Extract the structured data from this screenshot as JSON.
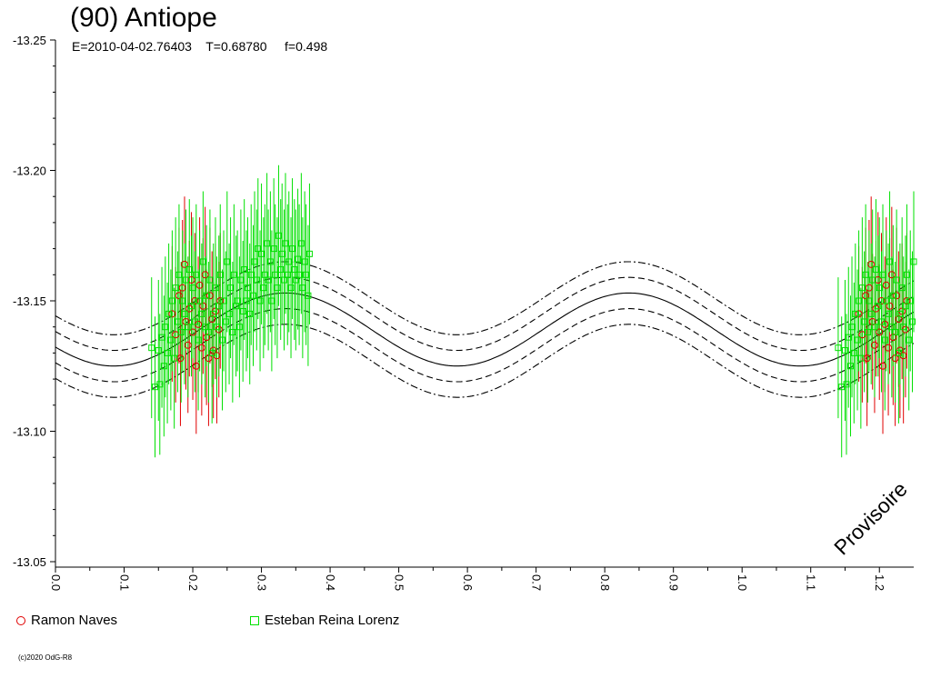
{
  "header": {
    "title": "(90) Antiope",
    "subtitle": "E=2010-04-02.76403    T=0.68780     f=0.498"
  },
  "watermark": "Provisoire",
  "copyright": "(c)2020 OdG-R8",
  "legend": [
    {
      "name": "Ramon Naves",
      "symbol": "circle",
      "color": "#e00000"
    },
    {
      "name": "Esteban Reina Lorenz",
      "symbol": "square",
      "color": "#00e000"
    }
  ],
  "chart_data": {
    "type": "scatter",
    "title": "(90) Antiope",
    "xlabel": "",
    "ylabel": "",
    "xlim": [
      0.0,
      1.25
    ],
    "ylim": [
      -13.25,
      -13.05
    ],
    "y_inverted": true,
    "x_ticks": [
      "0.0",
      "0.1",
      "0.2",
      "0.3",
      "0.4",
      "0.5",
      "0.6",
      "0.7",
      "0.8",
      "0.9",
      "1.0",
      "1.1",
      "1.2"
    ],
    "y_ticks": [
      "-13.25",
      "-13.20",
      "-13.15",
      "-13.10",
      "-13.05"
    ],
    "grid": false,
    "model_curves": [
      {
        "style": "solid",
        "offset": 0.0
      },
      {
        "style": "dashed",
        "offset": 0.006
      },
      {
        "style": "dashed",
        "offset": -0.006
      },
      {
        "style": "dashdot",
        "offset": 0.012
      },
      {
        "style": "dashdot",
        "offset": -0.012
      }
    ],
    "model": {
      "mean": -13.139,
      "amplitude": 0.014,
      "peak_phase": 0.335
    },
    "series": [
      {
        "name": "Ramon Naves",
        "color": "#e00000",
        "marker": "circle",
        "error": 0.026,
        "points": [
          [
            0.17,
            -13.145
          ],
          [
            0.175,
            -13.137
          ],
          [
            0.18,
            -13.152
          ],
          [
            0.182,
            -13.128
          ],
          [
            0.185,
            -13.155
          ],
          [
            0.188,
            -13.164
          ],
          [
            0.19,
            -13.142
          ],
          [
            0.193,
            -13.133
          ],
          [
            0.195,
            -13.147
          ],
          [
            0.198,
            -13.158
          ],
          [
            0.2,
            -13.138
          ],
          [
            0.203,
            -13.15
          ],
          [
            0.205,
            -13.125
          ],
          [
            0.208,
            -13.141
          ],
          [
            0.21,
            -13.156
          ],
          [
            0.213,
            -13.132
          ],
          [
            0.215,
            -13.148
          ],
          [
            0.218,
            -13.16
          ],
          [
            0.22,
            -13.136
          ],
          [
            0.223,
            -13.128
          ],
          [
            0.225,
            -13.152
          ],
          [
            0.228,
            -13.143
          ],
          [
            0.23,
            -13.131
          ],
          [
            0.233,
            -13.146
          ],
          [
            0.235,
            -13.129
          ],
          [
            0.238,
            -13.139
          ],
          [
            0.24,
            -13.15
          ]
        ]
      },
      {
        "name": "Esteban Reina Lorenz",
        "color": "#00e000",
        "marker": "square",
        "error": 0.027,
        "points": [
          [
            0.14,
            -13.132
          ],
          [
            0.145,
            -13.117
          ],
          [
            0.15,
            -13.131
          ],
          [
            0.152,
            -13.118
          ],
          [
            0.155,
            -13.136
          ],
          [
            0.158,
            -13.125
          ],
          [
            0.16,
            -13.14
          ],
          [
            0.163,
            -13.13
          ],
          [
            0.165,
            -13.145
          ],
          [
            0.168,
            -13.135
          ],
          [
            0.17,
            -13.15
          ],
          [
            0.173,
            -13.128
          ],
          [
            0.175,
            -13.155
          ],
          [
            0.178,
            -13.142
          ],
          [
            0.18,
            -13.16
          ],
          [
            0.183,
            -13.138
          ],
          [
            0.185,
            -13.15
          ],
          [
            0.188,
            -13.145
          ],
          [
            0.19,
            -13.158
          ],
          [
            0.193,
            -13.14
          ],
          [
            0.195,
            -13.162
          ],
          [
            0.198,
            -13.148
          ],
          [
            0.2,
            -13.155
          ],
          [
            0.203,
            -13.142
          ],
          [
            0.205,
            -13.16
          ],
          [
            0.208,
            -13.135
          ],
          [
            0.21,
            -13.15
          ],
          [
            0.213,
            -13.145
          ],
          [
            0.215,
            -13.165
          ],
          [
            0.218,
            -13.14
          ],
          [
            0.22,
            -13.152
          ],
          [
            0.223,
            -13.138
          ],
          [
            0.225,
            -13.158
          ],
          [
            0.228,
            -13.13
          ],
          [
            0.23,
            -13.145
          ],
          [
            0.233,
            -13.155
          ],
          [
            0.235,
            -13.14
          ],
          [
            0.238,
            -13.148
          ],
          [
            0.24,
            -13.16
          ],
          [
            0.243,
            -13.135
          ],
          [
            0.245,
            -13.15
          ],
          [
            0.248,
            -13.142
          ],
          [
            0.25,
            -13.165
          ],
          [
            0.253,
            -13.145
          ],
          [
            0.255,
            -13.155
          ],
          [
            0.258,
            -13.138
          ],
          [
            0.26,
            -13.16
          ],
          [
            0.263,
            -13.148
          ],
          [
            0.265,
            -13.15
          ],
          [
            0.268,
            -13.14
          ],
          [
            0.27,
            -13.158
          ],
          [
            0.273,
            -13.146
          ],
          [
            0.275,
            -13.162
          ],
          [
            0.278,
            -13.15
          ],
          [
            0.28,
            -13.155
          ],
          [
            0.283,
            -13.145
          ],
          [
            0.285,
            -13.16
          ],
          [
            0.288,
            -13.152
          ],
          [
            0.29,
            -13.165
          ],
          [
            0.293,
            -13.158
          ],
          [
            0.295,
            -13.17
          ],
          [
            0.298,
            -13.15
          ],
          [
            0.3,
            -13.168
          ],
          [
            0.303,
            -13.155
          ],
          [
            0.305,
            -13.16
          ],
          [
            0.308,
            -13.172
          ],
          [
            0.31,
            -13.158
          ],
          [
            0.313,
            -13.165
          ],
          [
            0.315,
            -13.15
          ],
          [
            0.318,
            -13.17
          ],
          [
            0.32,
            -13.16
          ],
          [
            0.323,
            -13.155
          ],
          [
            0.325,
            -13.175
          ],
          [
            0.328,
            -13.162
          ],
          [
            0.33,
            -13.168
          ],
          [
            0.333,
            -13.158
          ],
          [
            0.335,
            -13.172
          ],
          [
            0.338,
            -13.16
          ],
          [
            0.34,
            -13.165
          ],
          [
            0.343,
            -13.155
          ],
          [
            0.345,
            -13.17
          ],
          [
            0.348,
            -13.162
          ],
          [
            0.35,
            -13.158
          ],
          [
            0.353,
            -13.166
          ],
          [
            0.355,
            -13.16
          ],
          [
            0.358,
            -13.172
          ],
          [
            0.36,
            -13.155
          ],
          [
            0.363,
            -13.165
          ],
          [
            0.365,
            -13.16
          ],
          [
            0.368,
            -13.152
          ],
          [
            0.37,
            -13.168
          ]
        ]
      }
    ]
  }
}
